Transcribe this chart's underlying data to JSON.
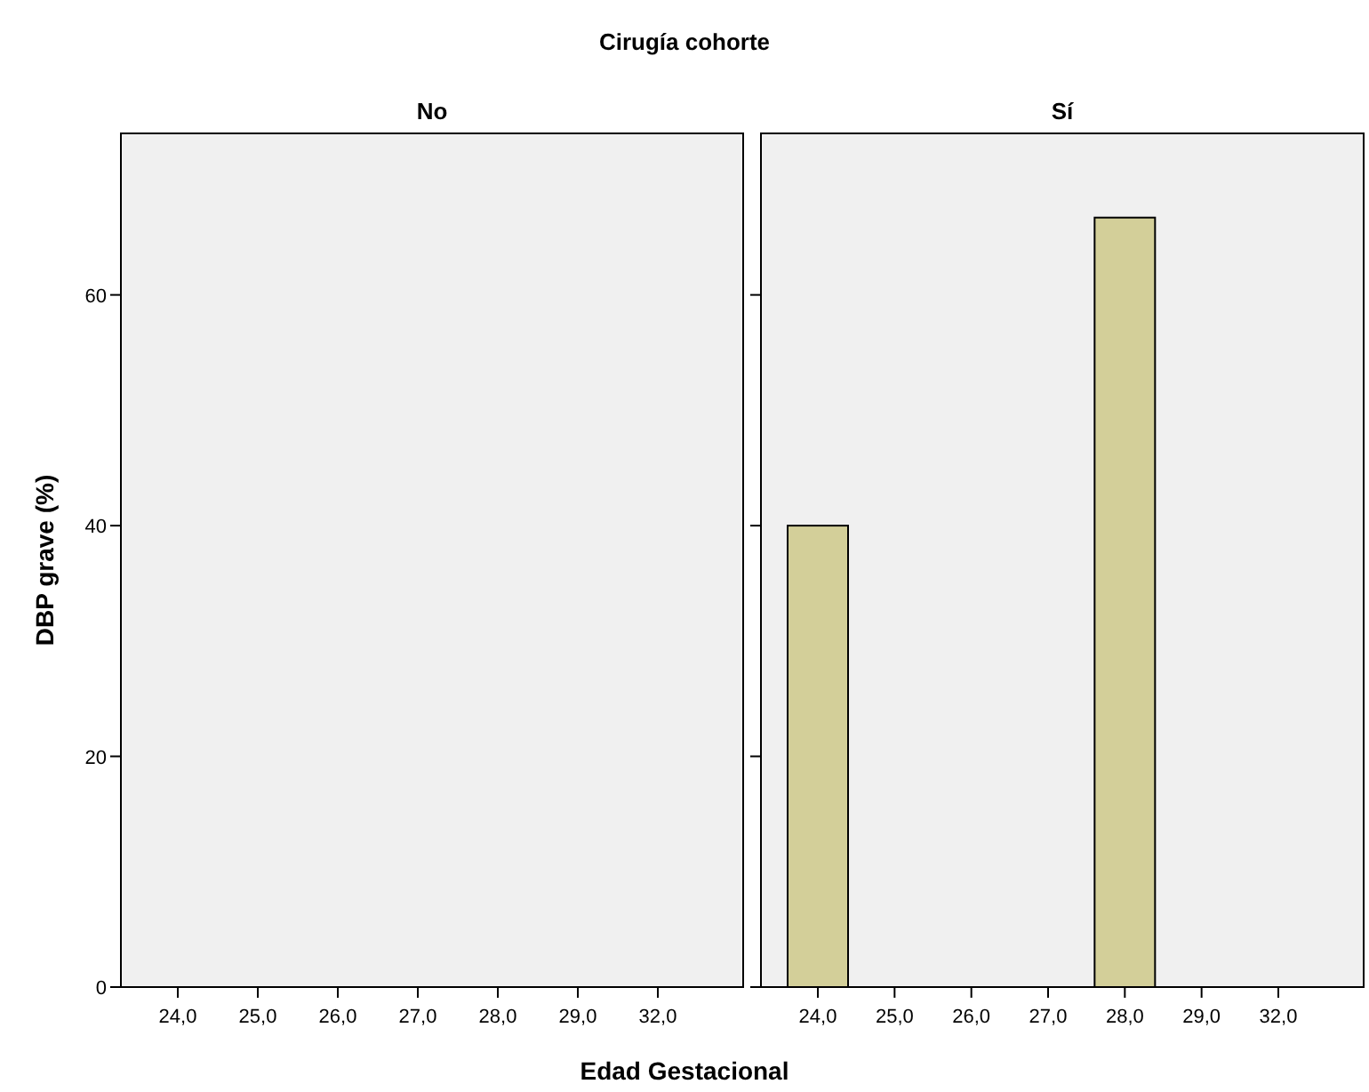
{
  "chart_data": [
    {
      "type": "bar",
      "title": "Cirugía cohorte",
      "subtitle": "No",
      "xlabel": "Edad Gestacional",
      "ylabel": "DBP grave (%)",
      "categories": [
        "24,0",
        "25,0",
        "26,0",
        "27,0",
        "28,0",
        "29,0",
        "32,0"
      ],
      "values": [
        null,
        null,
        null,
        null,
        null,
        null,
        null
      ],
      "ylim": [
        0,
        74
      ],
      "yticks": [
        0,
        20,
        40,
        60
      ]
    },
    {
      "type": "bar",
      "subtitle": "Sí",
      "categories": [
        "24,0",
        "25,0",
        "26,0",
        "27,0",
        "28,0",
        "29,0",
        "32,0"
      ],
      "values": [
        40,
        null,
        null,
        null,
        66.7,
        null,
        null
      ],
      "color": "#d3cf99",
      "ylim": [
        0,
        74
      ],
      "yticks": [
        0,
        20,
        40,
        60
      ],
      "tick_labels": "x"
    }
  ]
}
